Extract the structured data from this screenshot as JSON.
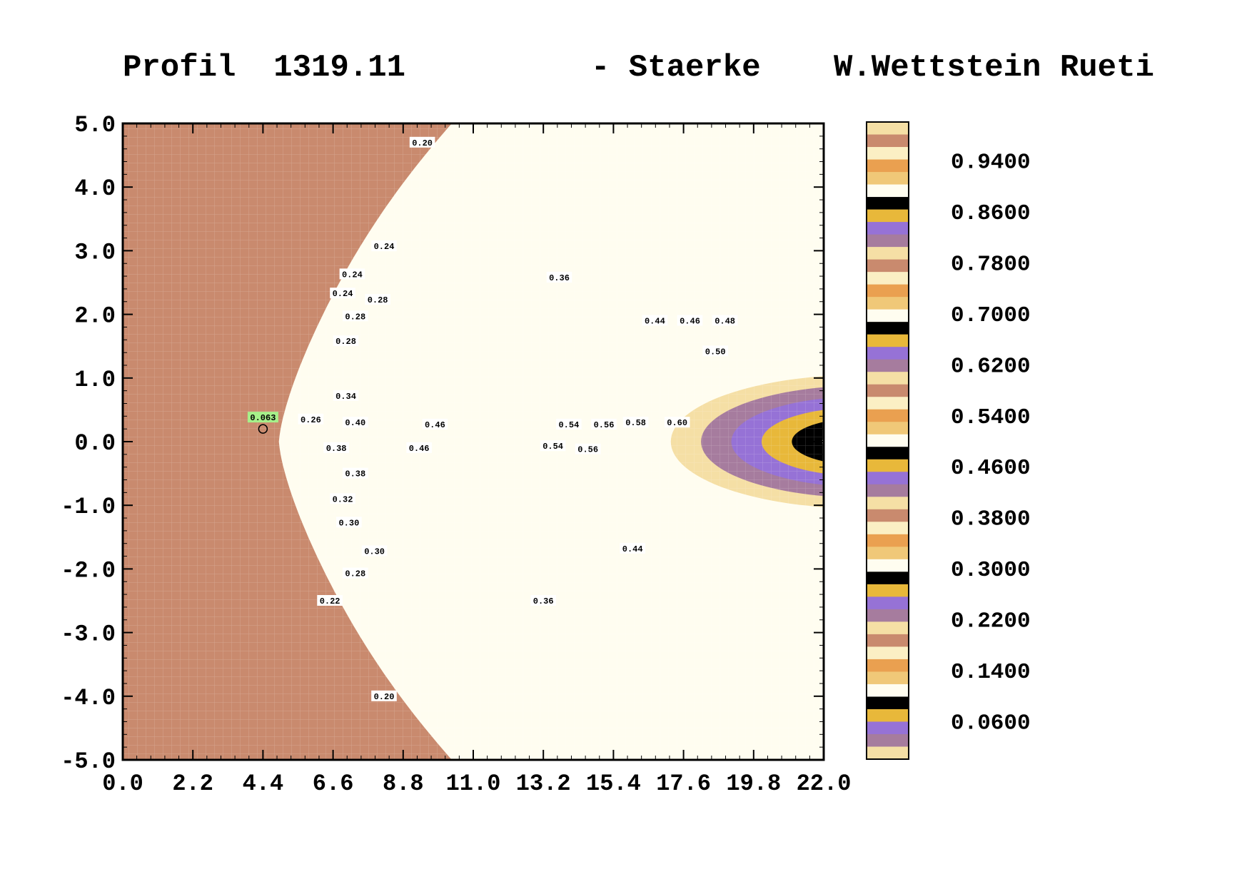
{
  "header": {
    "left": "Profil  1319.11",
    "middle": "- Staerke",
    "right": "W.Wettstein Rueti"
  },
  "palette": {
    "background_field": "#C98A6E",
    "bands": [
      "#C98A6E",
      "#F5DFA5",
      "#A67C9E",
      "#9672D6",
      "#E8B83A",
      "#000000",
      "#FFFDF0",
      "#F5DFA5",
      "#EAA050",
      "#F0C878"
    ],
    "band_order": [
      "#FFFDF0",
      "#F0C878",
      "#EAA050",
      "#FBEFC4",
      "#C98A6E",
      "#F5DFA5",
      "#A67C9E",
      "#9672D6",
      "#E8B83A",
      "#000000"
    ]
  },
  "chart_data": {
    "type": "heatmap",
    "x_ticks": [
      "0.0",
      "2.2",
      "4.4",
      "6.6",
      "8.8",
      "11.0",
      "13.2",
      "15.4",
      "17.6",
      "19.8",
      "22.0"
    ],
    "y_ticks": [
      "5.0",
      "4.0",
      "3.0",
      "2.0",
      "1.0",
      "0.0",
      "-1.0",
      "-2.0",
      "-3.0",
      "-4.0",
      "-5.0"
    ],
    "xlim": [
      0,
      22
    ],
    "ylim": [
      -5,
      5
    ],
    "colorbar": {
      "range": [
        0.0,
        1.0
      ],
      "labels": [
        "0.9400",
        "0.8600",
        "0.7800",
        "0.7000",
        "0.6200",
        "0.5400",
        "0.4600",
        "0.3800",
        "0.3000",
        "0.2200",
        "0.1400",
        "0.0600"
      ],
      "label_values": [
        0.94,
        0.86,
        0.78,
        0.7,
        0.62,
        0.54,
        0.46,
        0.38,
        0.3,
        0.22,
        0.14,
        0.06
      ]
    },
    "annotations": [
      {
        "text": "0.063",
        "x": 4.4,
        "y": 0.38,
        "highlight": "#A6F08A"
      },
      {
        "text": "0.26",
        "x": 5.9,
        "y": 0.35
      },
      {
        "text": "0.40",
        "x": 7.3,
        "y": 0.3
      },
      {
        "text": "0.38",
        "x": 6.7,
        "y": -0.1
      },
      {
        "text": "0.38",
        "x": 7.3,
        "y": -0.5
      },
      {
        "text": "0.34",
        "x": 7.0,
        "y": 0.72
      },
      {
        "text": "0.28",
        "x": 7.0,
        "y": 1.58
      },
      {
        "text": "0.28",
        "x": 7.3,
        "y": 1.97
      },
      {
        "text": "0.28",
        "x": 8.0,
        "y": 2.23
      },
      {
        "text": "0.24",
        "x": 6.9,
        "y": 2.33
      },
      {
        "text": "0.24",
        "x": 7.2,
        "y": 2.63
      },
      {
        "text": "0.24",
        "x": 8.2,
        "y": 3.07
      },
      {
        "text": "0.20",
        "x": 9.4,
        "y": 4.7
      },
      {
        "text": "0.46",
        "x": 9.8,
        "y": 0.27
      },
      {
        "text": "0.46",
        "x": 9.3,
        "y": -0.1
      },
      {
        "text": "0.36",
        "x": 13.7,
        "y": 2.58
      },
      {
        "text": "0.54",
        "x": 14.0,
        "y": 0.27
      },
      {
        "text": "0.56",
        "x": 15.1,
        "y": 0.27
      },
      {
        "text": "0.54",
        "x": 13.5,
        "y": -0.07
      },
      {
        "text": "0.56",
        "x": 14.6,
        "y": -0.12
      },
      {
        "text": "0.58",
        "x": 16.1,
        "y": 0.3
      },
      {
        "text": "0.60",
        "x": 17.4,
        "y": 0.3
      },
      {
        "text": "0.44",
        "x": 16.7,
        "y": 1.9
      },
      {
        "text": "0.46",
        "x": 17.8,
        "y": 1.9
      },
      {
        "text": "0.48",
        "x": 18.9,
        "y": 1.9
      },
      {
        "text": "0.50",
        "x": 18.6,
        "y": 1.42
      },
      {
        "text": "0.32",
        "x": 6.9,
        "y": -0.9
      },
      {
        "text": "0.30",
        "x": 7.1,
        "y": -1.27
      },
      {
        "text": "0.30",
        "x": 7.9,
        "y": -1.72
      },
      {
        "text": "0.28",
        "x": 7.3,
        "y": -2.07
      },
      {
        "text": "0.22",
        "x": 6.5,
        "y": -2.5
      },
      {
        "text": "0.36",
        "x": 13.2,
        "y": -2.5
      },
      {
        "text": "0.44",
        "x": 16.0,
        "y": -1.68
      },
      {
        "text": "0.20",
        "x": 8.2,
        "y": -4.0
      }
    ],
    "station_marker": {
      "x": 4.4,
      "y": 0.2
    }
  }
}
